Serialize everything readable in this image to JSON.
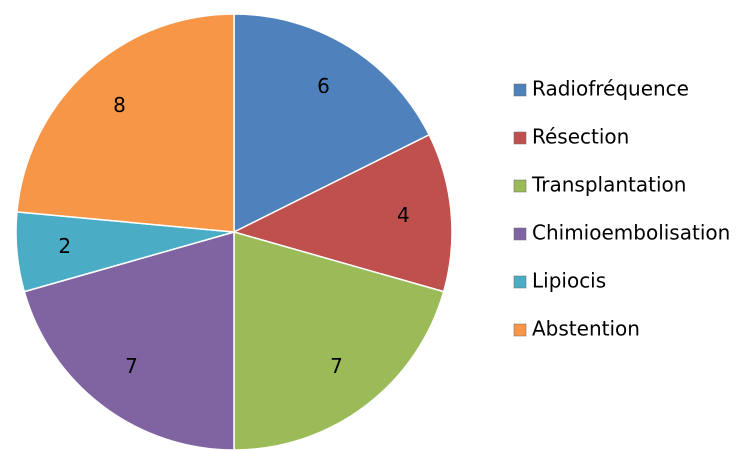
{
  "chart_data": {
    "type": "pie",
    "categories": [
      "Radiofréquence",
      "Résection",
      "Transplantation",
      "Chimioembolisation",
      "Lipiocis",
      "Abstention"
    ],
    "values": [
      6,
      4,
      7,
      7,
      2,
      8
    ],
    "colors": [
      "#4f81bd",
      "#c0504d",
      "#9bbb59",
      "#8064a2",
      "#4bacc6",
      "#f79646"
    ],
    "legend": "right"
  }
}
